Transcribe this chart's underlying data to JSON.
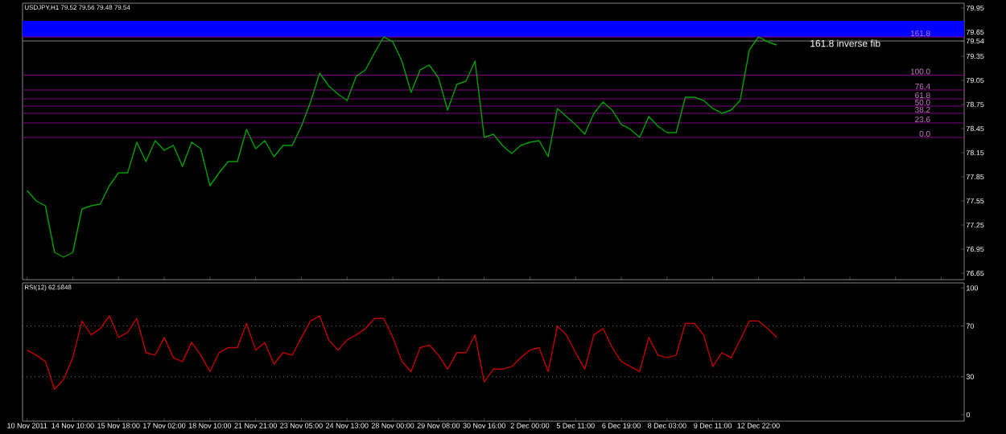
{
  "chart_data": [
    {
      "type": "line",
      "title": "USDJPY,H1 79.52 79.56 79.48 79.54",
      "color": "#00a000",
      "tick_labels": "y",
      "categories": [
        null,
        null,
        null,
        null,
        null,
        null,
        null,
        null,
        null,
        null,
        null,
        null,
        null,
        null,
        null,
        null,
        null,
        null,
        null,
        null,
        null,
        null,
        null,
        null,
        null,
        null,
        null,
        null,
        null,
        null,
        null,
        null,
        null,
        null,
        null,
        null,
        null,
        null,
        null,
        null,
        null,
        null,
        null,
        null,
        null,
        null,
        null,
        null,
        null,
        null,
        null,
        null,
        null,
        null,
        null,
        null,
        null,
        null,
        null,
        null,
        null,
        null,
        null,
        null,
        null,
        null,
        null,
        null,
        null,
        null,
        null,
        null,
        null,
        null,
        null,
        null,
        null,
        null,
        null,
        null,
        null,
        null,
        null,
        null,
        null,
        null,
        null,
        null,
        null,
        null,
        null,
        null,
        null,
        null,
        null,
        null,
        null,
        null,
        null,
        null,
        null,
        null,
        null
      ],
      "values": [
        77.68,
        77.55,
        77.49,
        76.91,
        76.85,
        76.91,
        77.45,
        77.49,
        77.51,
        77.74,
        77.9,
        77.9,
        78.28,
        78.04,
        78.3,
        78.18,
        78.24,
        77.98,
        78.28,
        78.2,
        77.74,
        77.9,
        78.04,
        78.04,
        78.44,
        78.2,
        78.3,
        78.1,
        78.24,
        78.24,
        78.48,
        78.78,
        79.14,
        78.98,
        78.88,
        78.8,
        79.1,
        79.18,
        79.39,
        79.59,
        79.53,
        79.29,
        78.9,
        79.18,
        79.24,
        79.08,
        78.68,
        79.0,
        79.04,
        79.29,
        78.34,
        78.38,
        78.24,
        78.14,
        78.24,
        78.28,
        78.3,
        78.1,
        78.7,
        78.6,
        78.5,
        78.38,
        78.64,
        78.78,
        78.68,
        78.5,
        78.44,
        78.34,
        78.6,
        78.48,
        78.4,
        78.4,
        78.84,
        78.84,
        78.8,
        78.7,
        78.64,
        78.68,
        78.8,
        79.43,
        79.59,
        79.53,
        79.49,
        null,
        null,
        null,
        null,
        null,
        null,
        null,
        null,
        null,
        null,
        null,
        null,
        null,
        null,
        null,
        null,
        null,
        null,
        null,
        null
      ],
      "ylim": [
        76.57,
        80.01
      ],
      "yticks": [
        79.95,
        79.65,
        {
          "value": 79.54,
          "label": "79.54"
        },
        79.35,
        79.05,
        78.75,
        78.45,
        78.15,
        77.85,
        77.55,
        77.25,
        76.95,
        76.65
      ],
      "bands": [
        {
          "axis": "y",
          "from": 79.59,
          "to": 79.79,
          "color": "#0000ff"
        }
      ],
      "ref_lines": [
        {
          "axis": "y",
          "value": 79.54,
          "color": "#808080"
        },
        {
          "axis": "y",
          "value": 79.59,
          "color": "#800080"
        },
        {
          "axis": "y",
          "value": 79.115,
          "color": "#800080"
        },
        {
          "axis": "y",
          "value": 78.93,
          "color": "#800080"
        },
        {
          "axis": "y",
          "value": 78.82,
          "color": "#800080"
        },
        {
          "axis": "y",
          "value": 78.73,
          "color": "#800080"
        },
        {
          "axis": "y",
          "value": 78.64,
          "color": "#800080"
        },
        {
          "axis": "y",
          "value": 78.52,
          "color": "#800080"
        },
        {
          "axis": "y",
          "value": 78.34,
          "color": "#800080"
        }
      ],
      "annotations": [
        "161.8 inverse fib",
        {
          "text": "161.8",
          "y": 79.59
        },
        {
          "text": "100.0",
          "y": 79.115
        },
        {
          "text": "76.4",
          "y": 78.93
        },
        {
          "text": "61.8",
          "y": 78.82
        },
        {
          "text": "50.0",
          "y": 78.73
        },
        {
          "text": "38.2",
          "y": 78.64
        },
        {
          "text": "23.6",
          "y": 78.52
        },
        {
          "text": "0.0",
          "y": 78.34
        }
      ]
    },
    {
      "type": "line",
      "title": "RSI(12) 62.5848",
      "color": "#c00000",
      "categories": [
        "10 Nov 2011",
        null,
        null,
        null,
        null,
        "14 Nov 10:00",
        null,
        null,
        null,
        null,
        "15 Nov 18:00",
        null,
        null,
        null,
        null,
        "17 Nov 02:00",
        null,
        null,
        null,
        null,
        "18 Nov 10:00",
        null,
        null,
        null,
        null,
        "21 Nov 21:00",
        null,
        null,
        null,
        null,
        "23 Nov 05:00",
        null,
        null,
        null,
        null,
        "24 Nov 13:00",
        null,
        null,
        null,
        null,
        "28 Nov 00:00",
        null,
        null,
        null,
        null,
        "29 Nov 08:00",
        null,
        null,
        null,
        null,
        "30 Nov 16:00",
        null,
        null,
        null,
        null,
        "2 Dec 00:00",
        null,
        null,
        null,
        null,
        "5 Dec 11:00",
        null,
        null,
        null,
        null,
        "6 Dec 19:00",
        null,
        null,
        null,
        null,
        "8 Dec 03:00",
        null,
        null,
        null,
        null,
        "9 Dec 11:00",
        null,
        null,
        null,
        null,
        "12 Dec 22:00",
        null,
        null,
        null,
        null,
        null,
        null,
        null,
        null,
        null,
        null,
        null,
        null,
        null,
        null,
        null,
        null,
        null,
        null,
        null,
        null,
        null,
        null
      ],
      "values": [
        51,
        47,
        42,
        20,
        28,
        45,
        74,
        63,
        68,
        78,
        61,
        65,
        76,
        49,
        47,
        61,
        45,
        42,
        57,
        47,
        34,
        49,
        53,
        53,
        72,
        51,
        57,
        40,
        49,
        47,
        61,
        74,
        78,
        59,
        51,
        59,
        63,
        68,
        76,
        76,
        61,
        42,
        34,
        53,
        55,
        47,
        36,
        49,
        49,
        63,
        26,
        36,
        36,
        38,
        45,
        51,
        53,
        34,
        70,
        63,
        49,
        36,
        63,
        68,
        53,
        42,
        38,
        34,
        61,
        47,
        45,
        47,
        72,
        72,
        63,
        38,
        49,
        45,
        59,
        74,
        74,
        68,
        61,
        null,
        null,
        null,
        null,
        null,
        null,
        null,
        null,
        null,
        null,
        null,
        null,
        null,
        null,
        null,
        null,
        null,
        null,
        null,
        null
      ],
      "ylim": [
        -5,
        104
      ],
      "yticks": [
        100,
        70,
        30,
        0
      ],
      "ref_lines": [
        {
          "axis": "y",
          "value": 70,
          "color": "#808080",
          "line_style": "dotted"
        },
        {
          "axis": "y",
          "value": 30,
          "color": "#808080",
          "line_style": "dotted"
        }
      ]
    }
  ]
}
